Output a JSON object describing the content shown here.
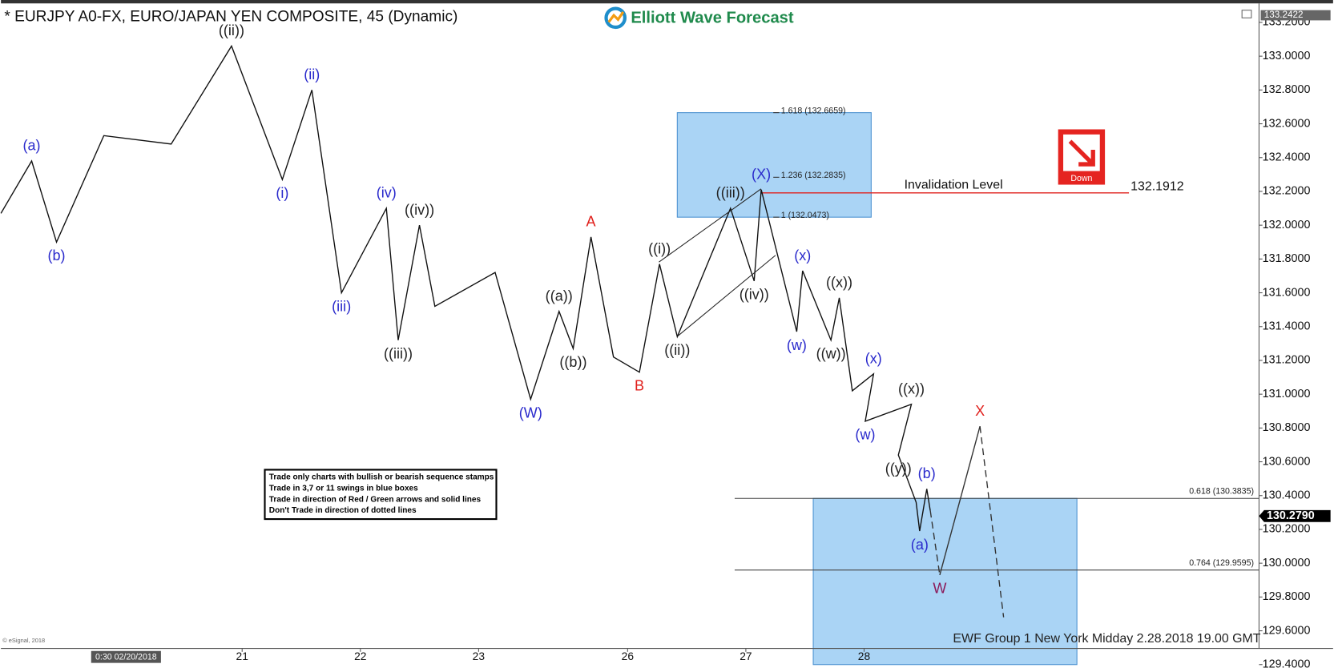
{
  "chart_data": {
    "type": "wave-line",
    "title": "* EURJPY A0-FX, EURO/JAPAN YEN COMPOSITE, 45 (Dynamic)",
    "logo": "Elliott Wave Forecast",
    "footer": "EWF Group 1 New York Midday  2.28.2018 19.00 GMT",
    "copyright": "© eSignal, 2018",
    "cursor_time": "0:30 02/20/2018",
    "rules": [
      "Trade only charts with bullish or bearish sequence stamps",
      "Trade in 3,7 or 11 swings in blue boxes",
      "Trade in direction of Red / Green arrows and solid lines",
      "Don't Trade in direction of dotted lines"
    ],
    "badge": "Down",
    "xlim": [
      -1.04,
      9.6
    ],
    "ylim": [
      129.4,
      133.2
    ],
    "xticks": [
      {
        "value": 1,
        "label": "21"
      },
      {
        "value": 2,
        "label": "22"
      },
      {
        "value": 3,
        "label": "23"
      },
      {
        "value": 4.26,
        "label": "26"
      },
      {
        "value": 5.26,
        "label": "27"
      },
      {
        "value": 6.26,
        "label": "28"
      }
    ],
    "yticks": [
      {
        "value": 129.4,
        "label": "129.4000"
      },
      {
        "value": 129.6,
        "label": "129.6000"
      },
      {
        "value": 129.8,
        "label": "129.8000"
      },
      {
        "value": 130,
        "label": "130.0000"
      },
      {
        "value": 130.2,
        "label": "130.2000"
      },
      {
        "value": 130.4,
        "label": "130.4000"
      },
      {
        "value": 130.6,
        "label": "130.6000"
      },
      {
        "value": 130.8,
        "label": "130.8000"
      },
      {
        "value": 131,
        "label": "131.0000"
      },
      {
        "value": 131.2,
        "label": "131.2000"
      },
      {
        "value": 131.4,
        "label": "131.4000"
      },
      {
        "value": 131.6,
        "label": "131.6000"
      },
      {
        "value": 131.8,
        "label": "131.8000"
      },
      {
        "value": 132,
        "label": "132.0000"
      },
      {
        "value": 132.2,
        "label": "132.2000"
      },
      {
        "value": 132.4,
        "label": "132.4000"
      },
      {
        "value": 132.6,
        "label": "132.6000"
      },
      {
        "value": 132.8,
        "label": "132.8000"
      },
      {
        "value": 133,
        "label": "133.0000"
      },
      {
        "value": 133.2,
        "label": "133.2000"
      }
    ],
    "price": {
      "color": "#111111",
      "x": [
        -1.04,
        -0.78,
        -0.57,
        -0.17,
        0.4,
        0.91,
        1.34,
        1.59,
        1.84,
        2.22,
        2.32,
        2.5,
        2.63,
        3.14,
        3.44,
        3.68,
        3.8,
        3.95,
        4.14,
        4.36,
        4.53,
        4.68,
        5.13,
        5.33,
        5.39,
        5.69,
        5.74,
        5.98,
        6.05,
        6.16,
        6.34,
        6.27,
        6.66,
        6.55,
        6.7,
        6.73,
        6.79,
        6.82
      ],
      "values": [
        132.07,
        132.38,
        131.9,
        132.53,
        132.48,
        133.06,
        132.27,
        132.8,
        131.6,
        132.1,
        131.32,
        132.0,
        131.52,
        131.72,
        130.97,
        131.49,
        131.27,
        131.93,
        131.22,
        131.13,
        131.77,
        131.34,
        132.1,
        131.67,
        132.21,
        131.37,
        131.73,
        131.32,
        131.57,
        131.02,
        131.12,
        130.84,
        130.94,
        130.64,
        130.36,
        130.19,
        130.44,
        130.31
      ]
    },
    "projection": [
      {
        "x": [
          6.82,
          6.9
        ],
        "values": [
          130.31,
          129.93
        ],
        "dashed": true
      },
      {
        "x": [
          6.9,
          7.24
        ],
        "values": [
          129.93,
          130.81
        ],
        "dashed": false
      },
      {
        "x": [
          7.24,
          7.44
        ],
        "values": [
          130.81,
          129.68
        ],
        "dashed": true
      }
    ],
    "zones": [
      {
        "x": [
          4.68,
          6.32
        ],
        "values": [
          132.0473,
          132.6659
        ]
      },
      {
        "x": [
          5.83,
          8.06
        ],
        "values": [
          129.4,
          130.3835
        ]
      }
    ],
    "fib_upper": [
      {
        "value": 132.6659,
        "label": "1.618 (132.6659)"
      },
      {
        "value": 132.2835,
        "label": "1.236 (132.2835)"
      },
      {
        "value": 132.0473,
        "label": "1 (132.0473)"
      }
    ],
    "fib_lower": [
      {
        "value": 130.3835,
        "label": "0.618 (130.3835)"
      },
      {
        "value": 129.9595,
        "label": "0.764 (129.9595)"
      }
    ],
    "invalidation": {
      "label": "Invalidation Level",
      "value": 132.1912,
      "x": [
        5.39,
        8.5
      ],
      "color": "#e0201c"
    },
    "high_tag": {
      "value": 133.2422,
      "label": "133.2422"
    },
    "last_price": {
      "value": 130.279,
      "label": "130.2790"
    },
    "wave_labels": [
      {
        "text": "(a)",
        "x": -0.78,
        "value": 132.38,
        "color": "#2a2acc",
        "place": "above"
      },
      {
        "text": "(b)",
        "x": -0.57,
        "value": 131.9,
        "color": "#2a2acc",
        "place": "below"
      },
      {
        "text": "((ii))",
        "x": 0.91,
        "value": 133.06,
        "color": "#222222",
        "place": "above"
      },
      {
        "text": "(i)",
        "x": 1.34,
        "value": 132.27,
        "color": "#2a2acc",
        "place": "below"
      },
      {
        "text": "(ii)",
        "x": 1.59,
        "value": 132.8,
        "color": "#2a2acc",
        "place": "above"
      },
      {
        "text": "(iii)",
        "x": 1.84,
        "value": 131.6,
        "color": "#2a2acc",
        "place": "below"
      },
      {
        "text": "(iv)",
        "x": 2.22,
        "value": 132.1,
        "color": "#2a2acc",
        "place": "above"
      },
      {
        "text": "((iii))",
        "x": 2.32,
        "value": 131.32,
        "color": "#222222",
        "place": "below"
      },
      {
        "text": "((iv))",
        "x": 2.5,
        "value": 132.0,
        "color": "#222222",
        "place": "above"
      },
      {
        "text": "(W)",
        "x": 3.44,
        "value": 130.97,
        "color": "#2a2acc",
        "place": "below"
      },
      {
        "text": "((a))",
        "x": 3.68,
        "value": 131.49,
        "color": "#222222",
        "place": "above"
      },
      {
        "text": "((b))",
        "x": 3.8,
        "value": 131.27,
        "color": "#222222",
        "place": "below"
      },
      {
        "text": "A",
        "x": 3.95,
        "value": 131.93,
        "color": "#e0201c",
        "place": "above"
      },
      {
        "text": "B",
        "x": 4.36,
        "value": 131.13,
        "color": "#e0201c",
        "place": "below"
      },
      {
        "text": "((i))",
        "x": 4.53,
        "value": 131.77,
        "color": "#222222",
        "place": "above"
      },
      {
        "text": "((ii))",
        "x": 4.68,
        "value": 131.34,
        "color": "#222222",
        "place": "below"
      },
      {
        "text": "((iii))",
        "x": 5.13,
        "value": 132.1,
        "color": "#222222",
        "place": "above"
      },
      {
        "text": "((iv))",
        "x": 5.33,
        "value": 131.67,
        "color": "#222222",
        "place": "below"
      },
      {
        "text": "(X)",
        "x": 5.39,
        "value": 132.21,
        "color": "#2a2acc",
        "place": "above"
      },
      {
        "text": "(w)",
        "x": 5.69,
        "value": 131.37,
        "color": "#2a2acc",
        "place": "below"
      },
      {
        "text": "(x)",
        "x": 5.74,
        "value": 131.73,
        "color": "#2a2acc",
        "place": "above"
      },
      {
        "text": "((w))",
        "x": 5.98,
        "value": 131.32,
        "color": "#222222",
        "place": "below"
      },
      {
        "text": "((x))",
        "x": 6.05,
        "value": 131.57,
        "color": "#222222",
        "place": "above"
      },
      {
        "text": "(x)",
        "x": 6.34,
        "value": 131.12,
        "color": "#2a2acc",
        "place": "above"
      },
      {
        "text": "(w)",
        "x": 6.27,
        "value": 130.84,
        "color": "#2a2acc",
        "place": "below"
      },
      {
        "text": "((x))",
        "x": 6.66,
        "value": 130.94,
        "color": "#222222",
        "place": "above"
      },
      {
        "text": "((y))",
        "x": 6.55,
        "value": 130.64,
        "color": "#222222",
        "place": "below"
      },
      {
        "text": "(a)",
        "x": 6.73,
        "value": 130.19,
        "color": "#2a2acc",
        "place": "below"
      },
      {
        "text": "(b)",
        "x": 6.79,
        "value": 130.44,
        "color": "#2a2acc",
        "place": "above"
      },
      {
        "text": "W",
        "x": 6.9,
        "value": 129.93,
        "color": "#8b1a5a",
        "place": "below"
      },
      {
        "text": "X",
        "x": 7.24,
        "value": 130.81,
        "color": "#e0201c",
        "place": "above"
      }
    ]
  }
}
